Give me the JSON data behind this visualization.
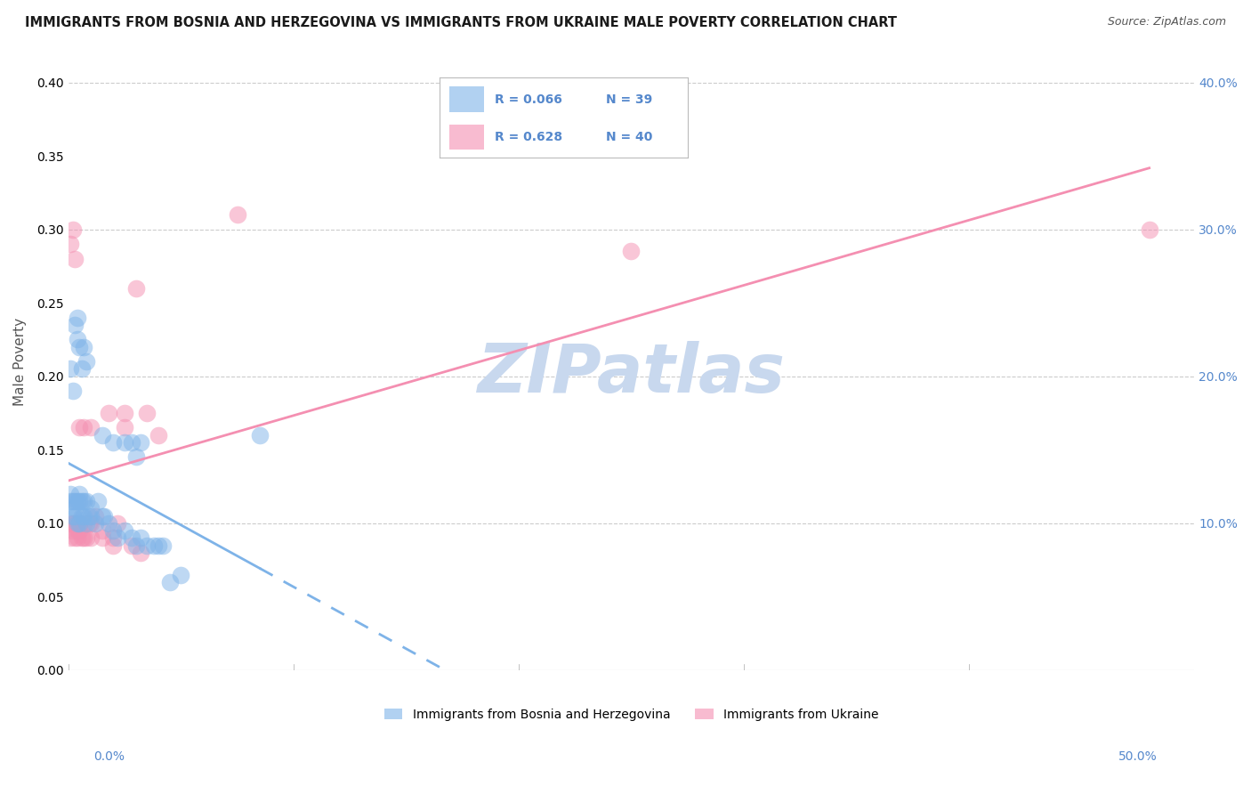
{
  "title": "IMMIGRANTS FROM BOSNIA AND HERZEGOVINA VS IMMIGRANTS FROM UKRAINE MALE POVERTY CORRELATION CHART",
  "source": "Source: ZipAtlas.com",
  "ylabel": "Male Poverty",
  "legend_bosnia_r": "R = 0.066",
  "legend_bosnia_n": "N = 39",
  "legend_ukraine_r": "R = 0.628",
  "legend_ukraine_n": "N = 40",
  "legend_label_bosnia": "Immigrants from Bosnia and Herzegovina",
  "legend_label_ukraine": "Immigrants from Ukraine",
  "bosnia_color": "#7EB3E8",
  "ukraine_color": "#F48FB1",
  "bosnia_x": [
    0.001,
    0.001,
    0.002,
    0.002,
    0.003,
    0.003,
    0.003,
    0.004,
    0.004,
    0.005,
    0.005,
    0.005,
    0.006,
    0.006,
    0.007,
    0.007,
    0.008,
    0.008,
    0.009,
    0.01,
    0.01,
    0.012,
    0.013,
    0.015,
    0.016,
    0.018,
    0.02,
    0.022,
    0.025,
    0.028,
    0.03,
    0.032,
    0.035,
    0.038,
    0.04,
    0.042,
    0.045,
    0.05,
    0.085
  ],
  "bosnia_y": [
    0.115,
    0.12,
    0.105,
    0.115,
    0.11,
    0.115,
    0.105,
    0.1,
    0.115,
    0.12,
    0.1,
    0.115,
    0.105,
    0.115,
    0.115,
    0.105,
    0.1,
    0.115,
    0.105,
    0.11,
    0.105,
    0.1,
    0.115,
    0.105,
    0.105,
    0.1,
    0.095,
    0.09,
    0.095,
    0.09,
    0.085,
    0.09,
    0.085,
    0.085,
    0.085,
    0.085,
    0.06,
    0.065,
    0.16
  ],
  "bosnia_y2": [
    0.205,
    0.19,
    0.235,
    0.225,
    0.24,
    0.22,
    0.205,
    0.22,
    0.21,
    0.16,
    0.155,
    0.155,
    0.155,
    0.145,
    0.155
  ],
  "bosnia_x2": [
    0.001,
    0.002,
    0.003,
    0.004,
    0.004,
    0.005,
    0.006,
    0.007,
    0.008,
    0.015,
    0.02,
    0.025,
    0.028,
    0.03,
    0.032
  ],
  "ukraine_x": [
    0.001,
    0.001,
    0.002,
    0.002,
    0.003,
    0.003,
    0.004,
    0.004,
    0.005,
    0.005,
    0.006,
    0.007,
    0.007,
    0.008,
    0.009,
    0.01,
    0.01,
    0.012,
    0.015,
    0.018,
    0.02,
    0.022,
    0.025,
    0.025,
    0.028,
    0.03,
    0.035,
    0.04,
    0.075,
    0.25,
    0.001,
    0.002,
    0.003,
    0.005,
    0.007,
    0.01,
    0.015,
    0.02,
    0.032,
    0.48
  ],
  "ukraine_y": [
    0.09,
    0.1,
    0.1,
    0.095,
    0.1,
    0.09,
    0.095,
    0.09,
    0.1,
    0.095,
    0.09,
    0.1,
    0.09,
    0.09,
    0.1,
    0.09,
    0.1,
    0.105,
    0.095,
    0.175,
    0.09,
    0.1,
    0.165,
    0.175,
    0.085,
    0.26,
    0.175,
    0.16,
    0.31,
    0.285,
    0.29,
    0.3,
    0.28,
    0.165,
    0.165,
    0.165,
    0.09,
    0.085,
    0.08,
    0.3
  ],
  "xlim": [
    0.0,
    0.5
  ],
  "ylim": [
    0.0,
    0.42
  ],
  "ytick_vals": [
    0.1,
    0.2,
    0.3,
    0.4
  ],
  "ytick_labels": [
    "10.0%",
    "20.0%",
    "30.0%",
    "40.0%"
  ],
  "xtick_vals": [
    0.0,
    0.5
  ],
  "xtick_labels": [
    "0.0%",
    "50.0%"
  ],
  "background_color": "#FFFFFF",
  "grid_color": "#CCCCCC",
  "watermark": "ZIPatlas",
  "watermark_color": "#C8D8EE",
  "tick_color": "#5588CC"
}
